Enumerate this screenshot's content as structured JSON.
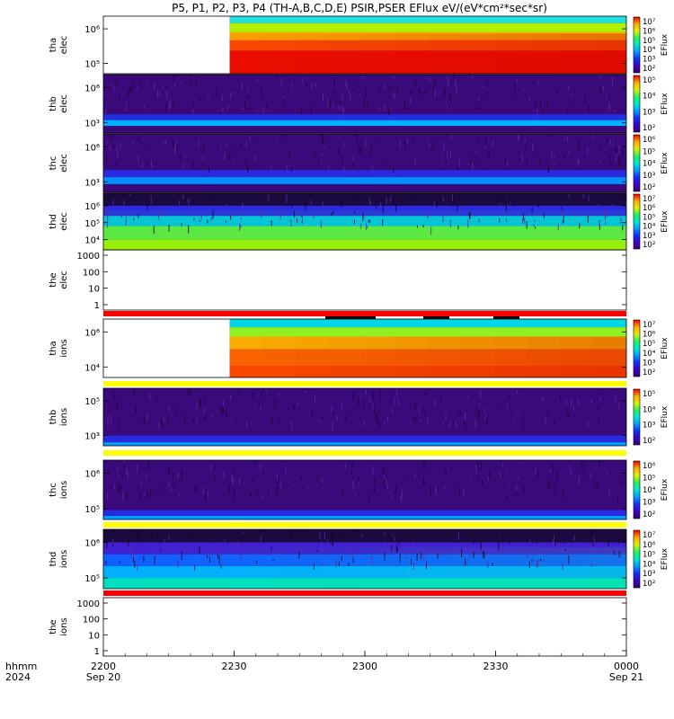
{
  "title": "P5, P1, P2, P3, P4 (TH-A,B,C,D,E) PSIR,PSER EFlux eV/(eV*cm²*sec*sr)",
  "chart_data": {
    "type": "heatmap",
    "colorbar_label": "EFlux",
    "x_axis": {
      "time_label": "hhmm",
      "year_label": "2024",
      "ticks": [
        {
          "time": "2200",
          "date": "Sep 20"
        },
        {
          "time": "2230",
          "date": ""
        },
        {
          "time": "2300",
          "date": ""
        },
        {
          "time": "2330",
          "date": ""
        },
        {
          "time": "0000",
          "date": "Sep 21"
        }
      ]
    },
    "panels": [
      {
        "id": "tha-elec",
        "line1": "tha",
        "line2": "elec",
        "yticks": [
          "10⁶",
          "10⁵"
        ],
        "colorbar": [
          "10⁷",
          "10⁶",
          "10⁵",
          "10⁴",
          "10³",
          "10²"
        ],
        "data_start": "2229"
      },
      {
        "id": "thb-elec",
        "line1": "thb",
        "line2": "elec",
        "yticks": [
          "10⁶",
          "10³"
        ],
        "colorbar": [
          "10⁵",
          "10⁴",
          "10³",
          "10²"
        ]
      },
      {
        "id": "thc-elec",
        "line1": "thc",
        "line2": "elec",
        "yticks": [
          "10⁶",
          "10³"
        ],
        "colorbar": [
          "10⁶",
          "10⁵",
          "10⁴",
          "10³",
          "10²"
        ]
      },
      {
        "id": "thd-elec",
        "line1": "thd",
        "line2": "elec",
        "yticks": [
          "10⁶",
          "10⁵",
          "10⁴"
        ],
        "colorbar": [
          "10⁷",
          "10⁶",
          "10⁵",
          "10⁴",
          "10³",
          "10²"
        ]
      },
      {
        "id": "the-elec",
        "line1": "the",
        "line2": "elec",
        "yticks": [
          "1000",
          "100",
          "10",
          "1"
        ],
        "empty": true
      },
      {
        "id": "tha-ions",
        "line1": "tha",
        "line2": "ions",
        "yticks": [
          "10⁶",
          "10⁴"
        ],
        "colorbar": [
          "10⁷",
          "10⁶",
          "10⁵",
          "10⁴",
          "10³",
          "10²"
        ],
        "data_start": "2229"
      },
      {
        "id": "thb-ions",
        "line1": "thb",
        "line2": "ions",
        "yticks": [
          "10⁵",
          "10³"
        ],
        "colorbar": [
          "10⁵",
          "10⁴",
          "10³",
          "10²"
        ]
      },
      {
        "id": "thc-ions",
        "line1": "thc",
        "line2": "ions",
        "yticks": [
          "10⁶",
          "10⁵"
        ],
        "colorbar": [
          "10⁶",
          "10⁵",
          "10⁴",
          "10³",
          "10²"
        ]
      },
      {
        "id": "thd-ions",
        "line1": "thd",
        "line2": "ions",
        "yticks": [
          "10⁶",
          "10⁵"
        ],
        "colorbar": [
          "10⁷",
          "10⁶",
          "10⁵",
          "10⁴",
          "10³",
          "10²"
        ]
      },
      {
        "id": "the-ions",
        "line1": "the",
        "line2": "ions",
        "yticks": [
          "1000",
          "100",
          "10",
          "1"
        ],
        "empty": true
      }
    ],
    "colors": {
      "flag_red": "#ff0000",
      "flag_yellow": "#ffff00",
      "bar_black": "#000000",
      "cmap": [
        "#3a0a7a",
        "#2a2ae0",
        "#0090ff",
        "#00e0e0",
        "#20e070",
        "#c0f000",
        "#ffd000",
        "#ff6000",
        "#e00000"
      ]
    }
  }
}
